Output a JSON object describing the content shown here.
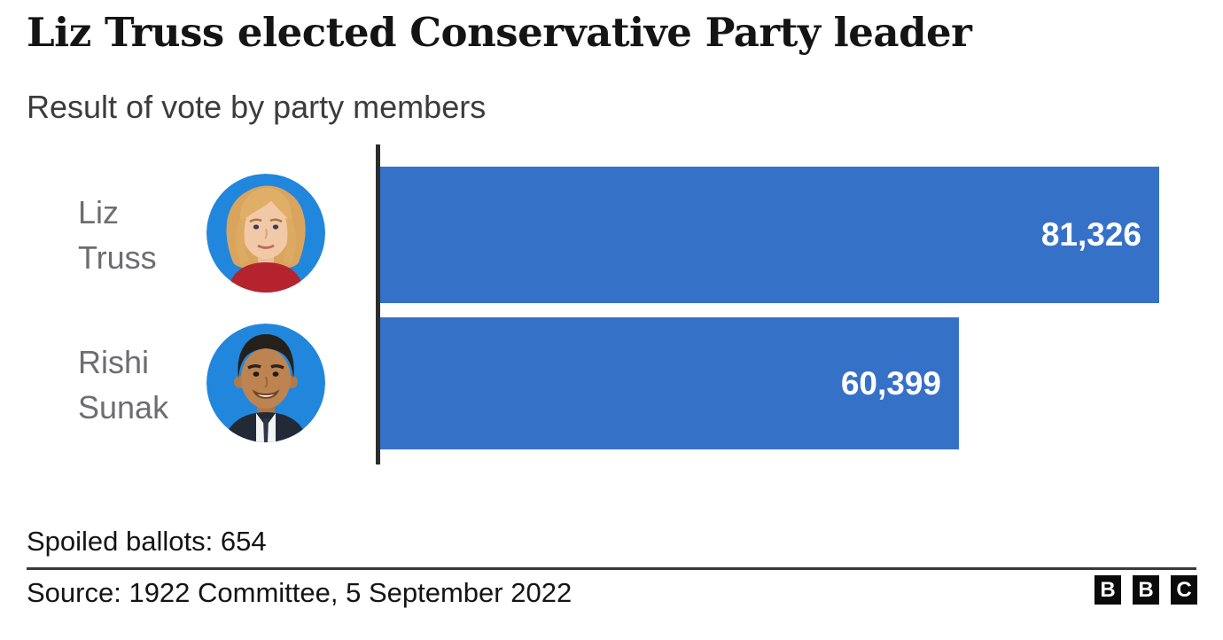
{
  "title": "Liz Truss elected Conservative Party leader",
  "subtitle": "Result of vote by party members",
  "chart_data": {
    "type": "bar",
    "orientation": "horizontal",
    "title": "Liz Truss elected Conservative Party leader",
    "subtitle": "Result of vote by party members",
    "categories": [
      "Liz Truss",
      "Rishi Sunak"
    ],
    "values": [
      81326,
      60399
    ],
    "value_labels": [
      "81,326",
      "60,399"
    ],
    "axis_max": 81326,
    "bar_color": "#3671C8",
    "grid": false,
    "legend": "none",
    "value_label_position": "inside-end",
    "annotations": [
      "Spoiled ballots: 654"
    ]
  },
  "rows": [
    {
      "name": "Liz Truss",
      "name_line1": "Liz",
      "name_line2": "Truss",
      "value": 81326,
      "value_label": "81,326",
      "avatar": "liz-truss-portrait"
    },
    {
      "name": "Rishi Sunak",
      "name_line1": "Rishi",
      "name_line2": "Sunak",
      "value": 60399,
      "value_label": "60,399",
      "avatar": "rishi-sunak-portrait"
    }
  ],
  "footer": {
    "spoiled_ballots": "Spoiled ballots: 654",
    "source": "Source: 1922 Committee, 5 September 2022",
    "logo_letters": [
      "B",
      "B",
      "C"
    ]
  },
  "colors": {
    "bar": "#3671C8",
    "avatar_background": "#2187DD",
    "label_gray": "#6d6d71",
    "axis": "#2d2d2d",
    "text": "#141414"
  }
}
